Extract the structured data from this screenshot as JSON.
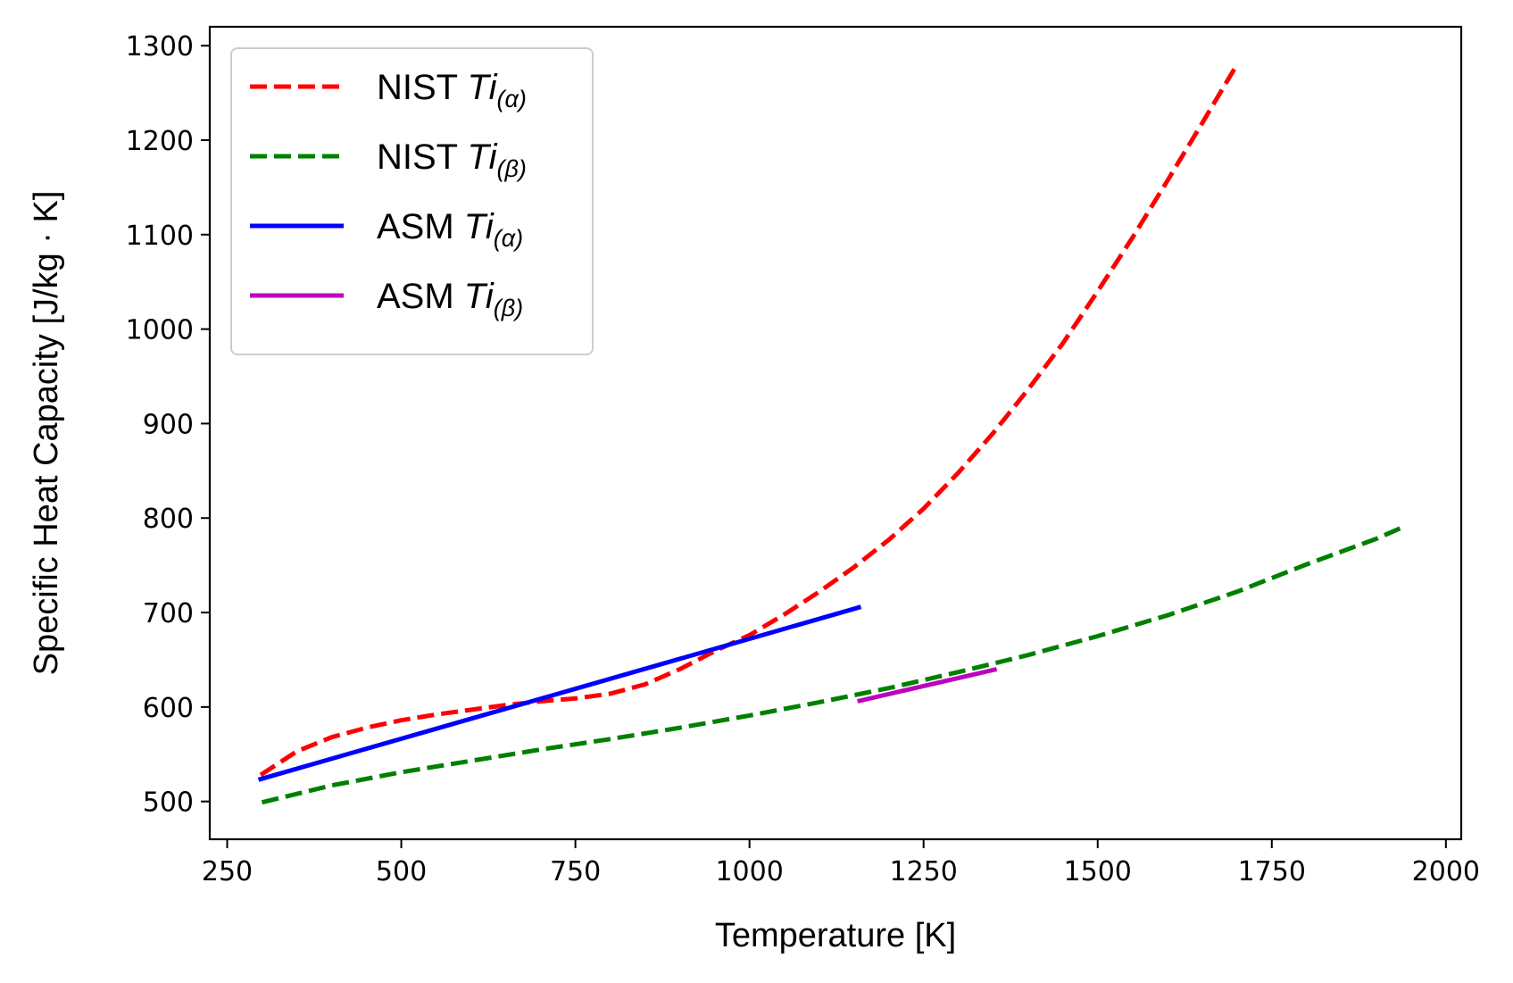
{
  "chart_data": {
    "type": "line",
    "title": "",
    "xlabel": "Temperature [K]",
    "ylabel": "Specific Heat Capacity [J/kg · K]",
    "xlim": [
      225,
      2022
    ],
    "ylim": [
      460,
      1320
    ],
    "xticks": [
      250,
      500,
      750,
      1000,
      1250,
      1500,
      1750,
      2000
    ],
    "yticks": [
      500,
      600,
      700,
      800,
      900,
      1000,
      1100,
      1200,
      1300
    ],
    "xtick_labels": [
      "250",
      "500",
      "750",
      "1000",
      "1250",
      "1500",
      "1750",
      "2000"
    ],
    "ytick_labels": [
      "500",
      "600",
      "700",
      "800",
      "900",
      "1000",
      "1100",
      "1200",
      "1300"
    ],
    "grid": false,
    "legend_position": "top-left",
    "series": [
      {
        "name": "NIST Ti(α)",
        "legend_main": "NIST ",
        "legend_italic": "Ti",
        "legend_sub": "(α)",
        "color": "#ff0000",
        "style": "dashed",
        "x": [
          298,
          350,
          400,
          450,
          500,
          550,
          600,
          650,
          700,
          750,
          800,
          850,
          900,
          950,
          1000,
          1050,
          1100,
          1150,
          1200,
          1250,
          1300,
          1350,
          1400,
          1450,
          1500,
          1550,
          1600,
          1650,
          1700
        ],
        "y": [
          528,
          553,
          568,
          578,
          586,
          592,
          597,
          602,
          606,
          609,
          614,
          624,
          640,
          659,
          676,
          698,
          722,
          748,
          777,
          810,
          848,
          890,
          936,
          985,
          1040,
          1097,
          1157,
          1218,
          1280
        ]
      },
      {
        "name": "NIST Ti(β)",
        "legend_main": "NIST ",
        "legend_italic": "Ti",
        "legend_sub": "(β)",
        "color": "#008000",
        "style": "dashed",
        "x": [
          300,
          400,
          500,
          600,
          700,
          800,
          900,
          1000,
          1100,
          1200,
          1300,
          1400,
          1500,
          1600,
          1700,
          1800,
          1900,
          1940
        ],
        "y": [
          499,
          517,
          531,
          543,
          555,
          566,
          578,
          591,
          605,
          620,
          637,
          655,
          675,
          697,
          722,
          751,
          778,
          791
        ]
      },
      {
        "name": "ASM Ti(α)",
        "legend_main": "ASM ",
        "legend_italic": "Ti",
        "legend_sub": "(α)",
        "color": "#0000ff",
        "style": "solid",
        "x": [
          295,
          1160
        ],
        "y": [
          523,
          706
        ]
      },
      {
        "name": "ASM Ti(β)",
        "legend_main": "ASM ",
        "legend_italic": "Ti",
        "legend_sub": "(β)",
        "color": "#bf00bf",
        "style": "solid",
        "x": [
          1155,
          1355
        ],
        "y": [
          606,
          640
        ]
      }
    ]
  }
}
